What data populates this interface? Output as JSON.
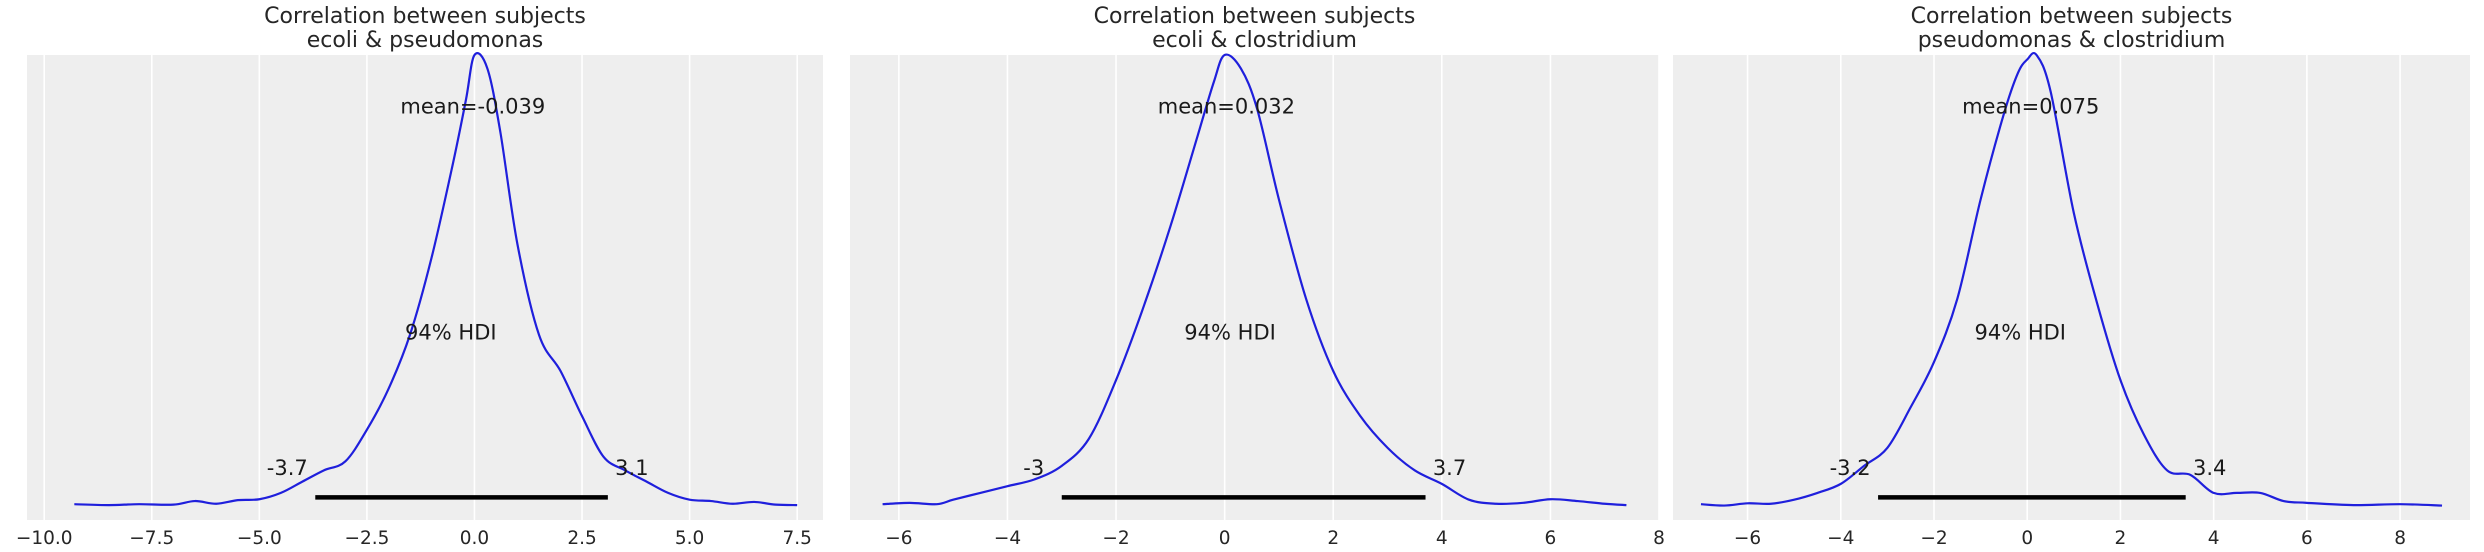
{
  "chart_data": [
    {
      "type": "line",
      "title": [
        "Correlation between subjects",
        "ecoli & pseudomonas"
      ],
      "xlim": [
        -10.4,
        8.1
      ],
      "ylim": [
        -0.03,
        1.0
      ],
      "xticks": [
        -10.0,
        -7.5,
        -5.0,
        -2.5,
        0.0,
        2.5,
        5.0,
        7.5
      ],
      "xtick_labels": [
        "−10.0",
        "−7.5",
        "−5.0",
        "−2.5",
        "0.0",
        "2.5",
        "5.0",
        "7.5"
      ],
      "mean_label": "mean=-0.039",
      "mean": -0.039,
      "hdi_label": "94% HDI",
      "hdi_low": -3.7,
      "hdi_high": 3.1,
      "hdi_low_label": "-3.7",
      "hdi_high_label": "3.1",
      "grid": true,
      "density": {
        "x": [
          -9.3,
          -8.5,
          -7.8,
          -7.0,
          -6.5,
          -6.0,
          -5.5,
          -5.0,
          -4.5,
          -4.0,
          -3.5,
          -3.0,
          -2.5,
          -2.0,
          -1.5,
          -1.0,
          -0.5,
          -0.2,
          0.0,
          0.3,
          0.6,
          1.0,
          1.5,
          2.0,
          2.5,
          3.0,
          3.5,
          4.0,
          4.5,
          5.0,
          5.5,
          6.0,
          6.5,
          7.0,
          7.5
        ],
        "y": [
          0.005,
          0.003,
          0.005,
          0.004,
          0.012,
          0.006,
          0.014,
          0.016,
          0.03,
          0.055,
          0.08,
          0.1,
          0.17,
          0.26,
          0.38,
          0.55,
          0.76,
          0.9,
          1.0,
          0.97,
          0.83,
          0.58,
          0.38,
          0.3,
          0.2,
          0.11,
          0.08,
          0.055,
          0.03,
          0.015,
          0.012,
          0.006,
          0.01,
          0.004,
          0.003
        ]
      }
    },
    {
      "type": "line",
      "title": [
        "Correlation between subjects",
        "ecoli & clostridium"
      ],
      "xlim": [
        -6.9,
        8.0
      ],
      "ylim": [
        -0.03,
        1.0
      ],
      "xticks": [
        -6,
        -4,
        -2,
        0,
        2,
        4,
        6,
        8
      ],
      "xtick_labels": [
        "−6",
        "−4",
        "−2",
        "0",
        "2",
        "4",
        "6",
        "8"
      ],
      "mean_label": "mean=0.032",
      "mean": 0.032,
      "hdi_label": "94% HDI",
      "hdi_low": -3.0,
      "hdi_high": 3.7,
      "hdi_low_label": "-3",
      "hdi_high_label": "3.7",
      "grid": true,
      "density": {
        "x": [
          -6.3,
          -5.8,
          -5.3,
          -5.0,
          -4.5,
          -4.0,
          -3.5,
          -3.0,
          -2.5,
          -2.0,
          -1.5,
          -1.0,
          -0.5,
          -0.2,
          0.0,
          0.3,
          0.6,
          1.0,
          1.5,
          2.0,
          2.5,
          3.0,
          3.5,
          4.0,
          4.5,
          5.0,
          5.5,
          6.0,
          6.5,
          7.0,
          7.4
        ],
        "y": [
          0.005,
          0.008,
          0.005,
          0.015,
          0.03,
          0.045,
          0.06,
          0.09,
          0.15,
          0.28,
          0.44,
          0.62,
          0.82,
          0.94,
          1.0,
          0.97,
          0.88,
          0.68,
          0.46,
          0.3,
          0.2,
          0.13,
          0.08,
          0.05,
          0.015,
          0.006,
          0.008,
          0.016,
          0.012,
          0.006,
          0.003
        ]
      }
    },
    {
      "type": "line",
      "title": [
        "Correlation between subjects",
        "pseudomonas & clostridium"
      ],
      "xlim": [
        -7.6,
        9.5
      ],
      "ylim": [
        -0.03,
        1.0
      ],
      "xticks": [
        -6,
        -4,
        -2,
        0,
        2,
        4,
        6,
        8
      ],
      "xtick_labels": [
        "−6",
        "−4",
        "−2",
        "0",
        "2",
        "4",
        "6",
        "8"
      ],
      "mean_label": "mean=0.075",
      "mean": 0.075,
      "hdi_label": "94% HDI",
      "hdi_low": -3.2,
      "hdi_high": 3.4,
      "hdi_low_label": "-3.2",
      "hdi_high_label": "3.4",
      "grid": true,
      "density": {
        "x": [
          -7.0,
          -6.5,
          -6.0,
          -5.5,
          -5.0,
          -4.5,
          -4.0,
          -3.5,
          -3.0,
          -2.5,
          -2.0,
          -1.5,
          -1.0,
          -0.5,
          -0.2,
          0.0,
          0.2,
          0.5,
          1.0,
          1.5,
          2.0,
          2.5,
          3.0,
          3.5,
          4.0,
          4.5,
          5.0,
          5.5,
          6.0,
          7.0,
          8.0,
          8.9
        ],
        "y": [
          0.005,
          0.002,
          0.007,
          0.006,
          0.015,
          0.03,
          0.05,
          0.09,
          0.13,
          0.22,
          0.32,
          0.46,
          0.68,
          0.87,
          0.96,
          0.99,
          1.0,
          0.92,
          0.65,
          0.45,
          0.28,
          0.16,
          0.08,
          0.07,
          0.03,
          0.03,
          0.03,
          0.012,
          0.008,
          0.003,
          0.005,
          0.002
        ]
      }
    }
  ]
}
